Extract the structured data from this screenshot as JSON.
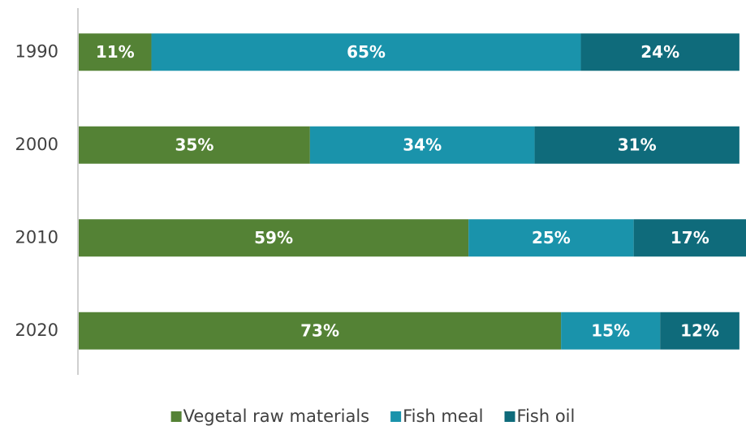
{
  "chart_data": {
    "type": "stacked-bar-horizontal",
    "categories": [
      "1990",
      "2000",
      "2010",
      "2020"
    ],
    "series": [
      {
        "name": "Vegetal raw materials",
        "color": "#548235",
        "values": [
          11,
          35,
          59,
          73
        ],
        "value_labels": [
          "11%",
          "35%",
          "59%",
          "73%"
        ]
      },
      {
        "name": "Fish meal",
        "color": "#1a93ab",
        "values": [
          65,
          34,
          25,
          15
        ],
        "value_labels": [
          "65%",
          "34%",
          "25%",
          "15%"
        ]
      },
      {
        "name": "Fish oil",
        "color": "#0f6b7b",
        "values": [
          24,
          31,
          17,
          12
        ],
        "value_labels": [
          "24%",
          "31%",
          "17%",
          "12%"
        ]
      }
    ],
    "xlim": [
      0,
      101
    ],
    "legend": "bottom"
  }
}
